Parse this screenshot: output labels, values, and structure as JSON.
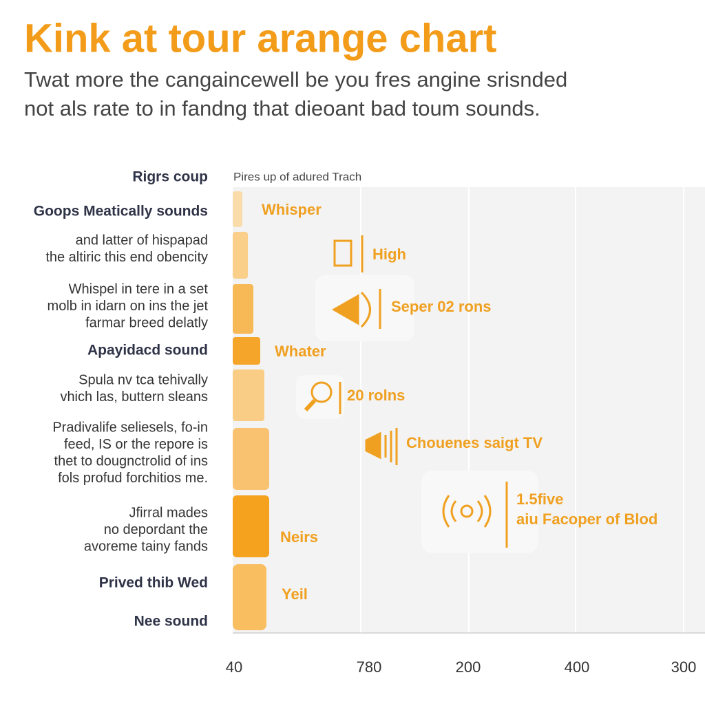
{
  "header": {
    "title": "Kink at tour arange chart",
    "subtitle": [
      "Twat more the cangaincewell be you fres angine srisnded",
      "not als rate to in fandng that dieoant bad toum sounds."
    ]
  },
  "plot": {
    "caption": "Pires up of adured Trach",
    "group_heading": "Rigrs coup",
    "left_labels": [
      [
        "Goops Meatically sounds"
      ],
      [
        "and latter of hispapad",
        "the altiric this end obencity"
      ],
      [
        "Whispel in tere in a set",
        "molb in idarn on ins the jet",
        "farmar breed delatly"
      ],
      [
        "Apayidacd sound"
      ],
      [
        "Spula nv tca tehivally",
        "vhich las, buttern sleans"
      ],
      [
        "Pradivalife seliesels, fo-in",
        "feed, IS or the repore is",
        "thet to dougnctrolid of ins",
        "fols profud forchitios me."
      ],
      [
        "Jfirral mades",
        "no depordant the",
        "avoreme tainy fands"
      ],
      [
        "Prived thib Wed"
      ],
      [
        "Nee sound"
      ]
    ],
    "bar_labels": [
      "Whisper",
      "High",
      "Seper 02 rons",
      "Whater",
      "20 rolns",
      "Chouenes saigt TV",
      "Neirs",
      "Yeil"
    ],
    "callout": [
      "1.5five",
      "aiu Facoper of Blod"
    ],
    "axis_ticks": [
      "40",
      "780",
      "200",
      "400",
      "300"
    ]
  }
}
